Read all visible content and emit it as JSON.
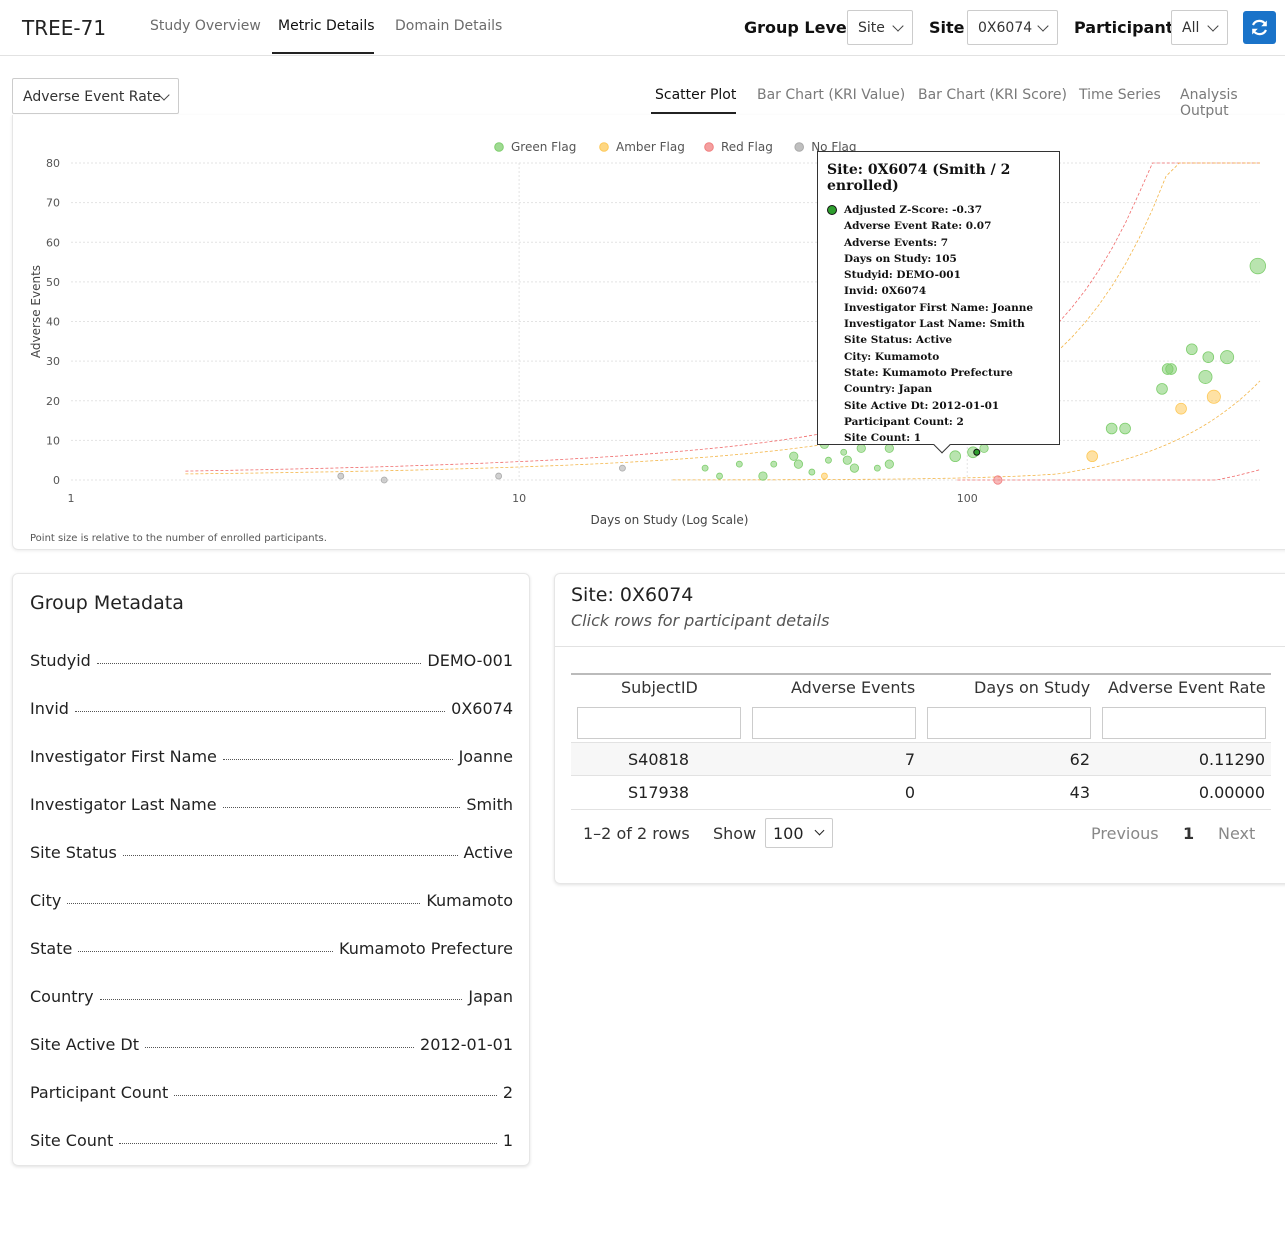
{
  "app": {
    "title": "TREE-71"
  },
  "nav": {
    "tabs": [
      "Study Overview",
      "Metric Details",
      "Domain Details"
    ],
    "active": "Metric Details"
  },
  "controls": {
    "group_level_label": "Group Level",
    "group_level_value": "Site",
    "site_label": "Site",
    "site_value": "0X6074",
    "participant_label": "Participant",
    "participant_value": "All"
  },
  "metric_select": {
    "value": "Adverse Event Rate"
  },
  "chart_tabs": [
    "Scatter Plot",
    "Bar Chart (KRI Value)",
    "Bar Chart (KRI Score)",
    "Time Series",
    "Analysis Output"
  ],
  "chart_tabs_active": "Scatter Plot",
  "colors": {
    "green": "#7fce6e",
    "amber": "#fdc95a",
    "red": "#f07f7f",
    "gray": "#aaaaaa",
    "accent": "#1a73c9"
  },
  "chart_data": {
    "type": "scatter",
    "xlabel": "Days on Study (Log Scale)",
    "ylabel": "Adverse Events",
    "x_scale": "log",
    "xlim": [
      1,
      450
    ],
    "ylim": [
      0,
      80
    ],
    "x_ticks": [
      1,
      10,
      100
    ],
    "y_ticks": [
      0,
      10,
      20,
      30,
      40,
      50,
      60,
      70,
      80
    ],
    "grid": true,
    "legend_position": "top-center",
    "legend": [
      "Green Flag",
      "Amber Flag",
      "Red Flag",
      "No Flag"
    ],
    "note": "Point size is relative to the number of enrolled participants.",
    "points": [
      {
        "x": 4,
        "y": 1,
        "flag": "No Flag",
        "n": 1
      },
      {
        "x": 5,
        "y": 0,
        "flag": "No Flag",
        "n": 1
      },
      {
        "x": 9,
        "y": 1,
        "flag": "No Flag",
        "n": 1
      },
      {
        "x": 17,
        "y": 3,
        "flag": "No Flag",
        "n": 1
      },
      {
        "x": 26,
        "y": 3,
        "flag": "Green Flag",
        "n": 1
      },
      {
        "x": 28,
        "y": 1,
        "flag": "Green Flag",
        "n": 1
      },
      {
        "x": 31,
        "y": 4,
        "flag": "Green Flag",
        "n": 1
      },
      {
        "x": 35,
        "y": 1,
        "flag": "Green Flag",
        "n": 2
      },
      {
        "x": 37,
        "y": 4,
        "flag": "Green Flag",
        "n": 1
      },
      {
        "x": 41,
        "y": 6,
        "flag": "Green Flag",
        "n": 2
      },
      {
        "x": 42,
        "y": 4,
        "flag": "Green Flag",
        "n": 2
      },
      {
        "x": 45,
        "y": 2,
        "flag": "Green Flag",
        "n": 1
      },
      {
        "x": 48,
        "y": 1,
        "flag": "Amber Flag",
        "n": 1
      },
      {
        "x": 48,
        "y": 9,
        "flag": "Green Flag",
        "n": 2
      },
      {
        "x": 49,
        "y": 5,
        "flag": "Green Flag",
        "n": 1
      },
      {
        "x": 53,
        "y": 7,
        "flag": "Green Flag",
        "n": 1
      },
      {
        "x": 54,
        "y": 5,
        "flag": "Green Flag",
        "n": 2
      },
      {
        "x": 56,
        "y": 3,
        "flag": "Green Flag",
        "n": 2
      },
      {
        "x": 58,
        "y": 8,
        "flag": "Green Flag",
        "n": 2
      },
      {
        "x": 63,
        "y": 3,
        "flag": "Green Flag",
        "n": 1
      },
      {
        "x": 67,
        "y": 4,
        "flag": "Green Flag",
        "n": 2
      },
      {
        "x": 67,
        "y": 8,
        "flag": "Green Flag",
        "n": 2
      },
      {
        "x": 94,
        "y": 6,
        "flag": "Green Flag",
        "n": 3
      },
      {
        "x": 103,
        "y": 7,
        "flag": "Green Flag",
        "n": 3
      },
      {
        "x": 105,
        "y": 7,
        "flag": "Green Flag",
        "n": 2,
        "selected": true
      },
      {
        "x": 109,
        "y": 8,
        "flag": "Green Flag",
        "n": 2
      },
      {
        "x": 117,
        "y": 0,
        "flag": "Red Flag",
        "n": 2
      },
      {
        "x": 190,
        "y": 6,
        "flag": "Amber Flag",
        "n": 3
      },
      {
        "x": 210,
        "y": 13,
        "flag": "Green Flag",
        "n": 3
      },
      {
        "x": 225,
        "y": 13,
        "flag": "Green Flag",
        "n": 3
      },
      {
        "x": 272,
        "y": 23,
        "flag": "Green Flag",
        "n": 3
      },
      {
        "x": 280,
        "y": 28,
        "flag": "Green Flag",
        "n": 3
      },
      {
        "x": 285,
        "y": 28,
        "flag": "Green Flag",
        "n": 3
      },
      {
        "x": 300,
        "y": 18,
        "flag": "Amber Flag",
        "n": 3
      },
      {
        "x": 317,
        "y": 33,
        "flag": "Green Flag",
        "n": 3
      },
      {
        "x": 340,
        "y": 26,
        "flag": "Green Flag",
        "n": 4
      },
      {
        "x": 345,
        "y": 31,
        "flag": "Green Flag",
        "n": 3
      },
      {
        "x": 355,
        "y": 21,
        "flag": "Amber Flag",
        "n": 4
      },
      {
        "x": 380,
        "y": 31,
        "flag": "Green Flag",
        "n": 4
      },
      {
        "x": 445,
        "y": 54,
        "flag": "Green Flag",
        "n": 5
      }
    ]
  },
  "tooltip": {
    "title": "Site: 0X6074 (Smith / 2 enrolled)",
    "lines": [
      "Adjusted Z-Score: -0.37",
      "Adverse Event Rate: 0.07",
      "Adverse Events: 7",
      "Days on Study: 105",
      "Studyid: DEMO-001",
      "Invid: 0X6074",
      "Investigator First Name: Joanne",
      "Investigator Last Name: Smith",
      "Site Status: Active",
      "City: Kumamoto",
      "State: Kumamoto Prefecture",
      "Country: Japan",
      "Site Active Dt: 2012-01-01",
      "Participant Count: 2",
      "Site Count: 1"
    ]
  },
  "metadata": {
    "title": "Group Metadata",
    "rows": [
      {
        "label": "Studyid",
        "value": "DEMO-001"
      },
      {
        "label": "Invid",
        "value": "0X6074"
      },
      {
        "label": "Investigator First Name",
        "value": "Joanne"
      },
      {
        "label": "Investigator Last Name",
        "value": "Smith"
      },
      {
        "label": "Site Status",
        "value": "Active"
      },
      {
        "label": "City",
        "value": "Kumamoto"
      },
      {
        "label": "State",
        "value": "Kumamoto Prefecture"
      },
      {
        "label": "Country",
        "value": "Japan"
      },
      {
        "label": "Site Active Dt",
        "value": "2012-01-01"
      },
      {
        "label": "Participant Count",
        "value": "2"
      },
      {
        "label": "Site Count",
        "value": "1"
      }
    ]
  },
  "site_panel": {
    "title": "Site: 0X6074",
    "subtitle": "Click rows for participant details",
    "columns": [
      "SubjectID",
      "Adverse Events",
      "Days on Study",
      "Adverse Event Rate"
    ],
    "rows": [
      [
        "S40818",
        "7",
        "62",
        "0.11290"
      ],
      [
        "S17938",
        "0",
        "43",
        "0.00000"
      ]
    ],
    "pager": {
      "summary": "1–2 of 2 rows",
      "show_label": "Show",
      "page_size": "100",
      "previous": "Previous",
      "current": "1",
      "next": "Next"
    }
  }
}
